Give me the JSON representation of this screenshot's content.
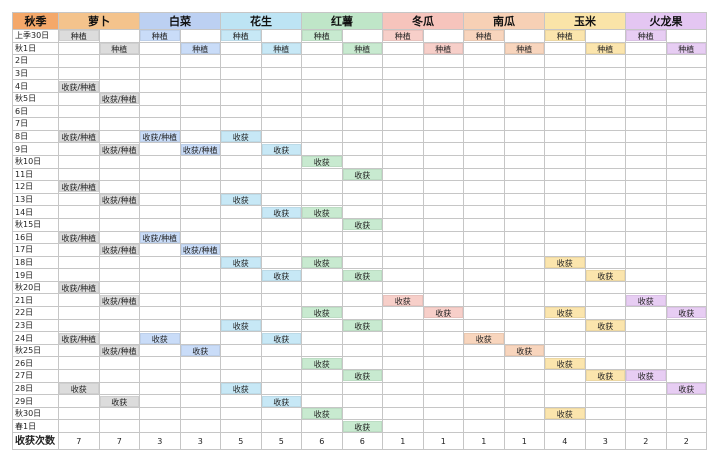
{
  "corner": "秋季",
  "total_label": "收获次数",
  "labels": {
    "plant": "种植",
    "harvest": "收获",
    "both": "收获/种植"
  },
  "crops": [
    {
      "name": "萝卜",
      "header": "#f4c38c",
      "body": "#dcdcdc"
    },
    {
      "name": "白菜",
      "header": "#bcd0f2",
      "body": "#c9dcf8"
    },
    {
      "name": "花生",
      "header": "#bde4f4",
      "body": "#c7e8f6"
    },
    {
      "name": "红薯",
      "header": "#bfe6c8",
      "body": "#c8ead0"
    },
    {
      "name": "冬瓜",
      "header": "#f6c4bc",
      "body": "#f7cfc9"
    },
    {
      "name": "南瓜",
      "header": "#f7d0b5",
      "body": "#f8d5bd"
    },
    {
      "name": "玉米",
      "header": "#fae4a8",
      "body": "#fbe5ad"
    },
    {
      "name": "火龙果",
      "header": "#e4c6f2",
      "body": "#e7cdf3"
    }
  ],
  "days": [
    "上季30日",
    "秋1日",
    "2日",
    "3日",
    "4日",
    "秋5日",
    "6日",
    "7日",
    "8日",
    "9日",
    "秋10日",
    "11日",
    "12日",
    "13日",
    "14日",
    "秋15日",
    "16日",
    "17日",
    "18日",
    "19日",
    "秋20日",
    "21日",
    "22日",
    "23日",
    "24日",
    "秋25日",
    "26日",
    "27日",
    "28日",
    "29日",
    "秋30日",
    "春1日"
  ],
  "grid": [
    [
      "P",
      "",
      "P",
      "",
      "P",
      "",
      "P",
      "",
      "P",
      "",
      "P",
      "",
      "P",
      "",
      "P",
      ""
    ],
    [
      "",
      "P",
      "",
      "P",
      "",
      "P",
      "",
      "P",
      "",
      "P",
      "",
      "P",
      "",
      "P",
      "",
      "P"
    ],
    [
      "",
      "",
      "",
      "",
      "",
      "",
      "",
      "",
      "",
      "",
      "",
      "",
      "",
      "",
      "",
      ""
    ],
    [
      "",
      "",
      "",
      "",
      "",
      "",
      "",
      "",
      "",
      "",
      "",
      "",
      "",
      "",
      "",
      ""
    ],
    [
      "B",
      "",
      "",
      "",
      "",
      "",
      "",
      "",
      "",
      "",
      "",
      "",
      "",
      "",
      "",
      ""
    ],
    [
      "",
      "B",
      "",
      "",
      "",
      "",
      "",
      "",
      "",
      "",
      "",
      "",
      "",
      "",
      "",
      ""
    ],
    [
      "",
      "",
      "",
      "",
      "",
      "",
      "",
      "",
      "",
      "",
      "",
      "",
      "",
      "",
      "",
      ""
    ],
    [
      "",
      "",
      "",
      "",
      "",
      "",
      "",
      "",
      "",
      "",
      "",
      "",
      "",
      "",
      "",
      ""
    ],
    [
      "B",
      "",
      "B",
      "",
      "H",
      "",
      "",
      "",
      "",
      "",
      "",
      "",
      "",
      "",
      "",
      ""
    ],
    [
      "",
      "B",
      "",
      "B",
      "",
      "H",
      "",
      "",
      "",
      "",
      "",
      "",
      "",
      "",
      "",
      ""
    ],
    [
      "",
      "",
      "",
      "",
      "",
      "",
      "H",
      "",
      "",
      "",
      "",
      "",
      "",
      "",
      "",
      ""
    ],
    [
      "",
      "",
      "",
      "",
      "",
      "",
      "",
      "H",
      "",
      "",
      "",
      "",
      "",
      "",
      "",
      ""
    ],
    [
      "B",
      "",
      "",
      "",
      "",
      "",
      "",
      "",
      "",
      "",
      "",
      "",
      "",
      "",
      "",
      ""
    ],
    [
      "",
      "B",
      "",
      "",
      "H",
      "",
      "",
      "",
      "",
      "",
      "",
      "",
      "",
      "",
      "",
      ""
    ],
    [
      "",
      "",
      "",
      "",
      "",
      "H",
      "H",
      "",
      "",
      "",
      "",
      "",
      "",
      "",
      "",
      ""
    ],
    [
      "",
      "",
      "",
      "",
      "",
      "",
      "",
      "H",
      "",
      "",
      "",
      "",
      "",
      "",
      "",
      ""
    ],
    [
      "B",
      "",
      "B",
      "",
      "",
      "",
      "",
      "",
      "",
      "",
      "",
      "",
      "",
      "",
      "",
      ""
    ],
    [
      "",
      "B",
      "",
      "B",
      "",
      "",
      "",
      "",
      "",
      "",
      "",
      "",
      "",
      "",
      "",
      ""
    ],
    [
      "",
      "",
      "",
      "",
      "H",
      "",
      "H",
      "",
      "",
      "",
      "",
      "",
      "H",
      "",
      "",
      ""
    ],
    [
      "",
      "",
      "",
      "",
      "",
      "H",
      "",
      "H",
      "",
      "",
      "",
      "",
      "",
      "H",
      "",
      ""
    ],
    [
      "B",
      "",
      "",
      "",
      "",
      "",
      "",
      "",
      "",
      "",
      "",
      "",
      "",
      "",
      "",
      ""
    ],
    [
      "",
      "B",
      "",
      "",
      "",
      "",
      "",
      "",
      "H",
      "",
      "",
      "",
      "",
      "",
      "H",
      ""
    ],
    [
      "",
      "",
      "",
      "",
      "",
      "",
      "H",
      "",
      "",
      "H",
      "",
      "",
      "H",
      "",
      "",
      "H"
    ],
    [
      "",
      "",
      "",
      "",
      "H",
      "",
      "",
      "H",
      "",
      "",
      "",
      "",
      "",
      "H",
      "",
      ""
    ],
    [
      "B",
      "",
      "H",
      "",
      "",
      "H",
      "",
      "",
      "",
      "",
      "H",
      "",
      "",
      "",
      "",
      ""
    ],
    [
      "",
      "B",
      "",
      "H",
      "",
      "",
      "",
      "",
      "",
      "",
      "",
      "H",
      "",
      "",
      "",
      ""
    ],
    [
      "",
      "",
      "",
      "",
      "",
      "",
      "H",
      "",
      "",
      "",
      "",
      "",
      "H",
      "",
      "",
      ""
    ],
    [
      "",
      "",
      "",
      "",
      "",
      "",
      "",
      "H",
      "",
      "",
      "",
      "",
      "",
      "H",
      "H",
      ""
    ],
    [
      "H",
      "",
      "",
      "",
      "H",
      "",
      "",
      "",
      "",
      "",
      "",
      "",
      "",
      "",
      "",
      "H"
    ],
    [
      "",
      "H",
      "",
      "",
      "",
      "H",
      "",
      "",
      "",
      "",
      "",
      "",
      "",
      "",
      "",
      ""
    ],
    [
      "",
      "",
      "",
      "",
      "",
      "",
      "H",
      "",
      "",
      "",
      "",
      "",
      "H",
      "",
      "",
      ""
    ],
    [
      "",
      "",
      "",
      "",
      "",
      "",
      "",
      "H",
      "",
      "",
      "",
      "",
      "",
      "",
      "",
      ""
    ]
  ],
  "totals": [
    "7",
    "7",
    "3",
    "3",
    "5",
    "5",
    "6",
    "6",
    "1",
    "1",
    "1",
    "1",
    "4",
    "3",
    "2",
    "2"
  ]
}
